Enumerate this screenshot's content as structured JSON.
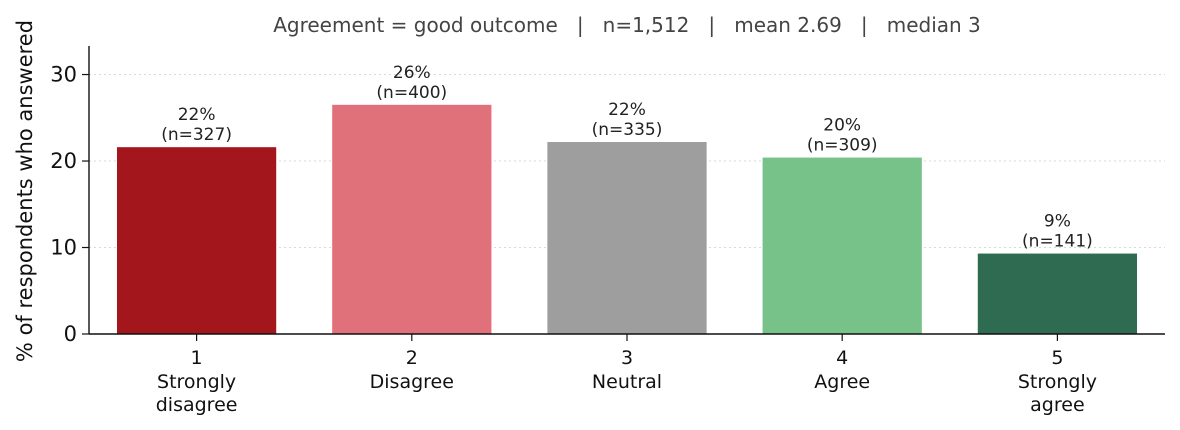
{
  "chart_data": {
    "type": "bar",
    "title": "Agreement = good outcome   |   n=1,512   |   mean 2.69   |   median 3",
    "ylabel": "% of respondents who answered",
    "xlabel": "",
    "ylim": [
      0,
      33.3
    ],
    "yticks": [
      0,
      10,
      20,
      30
    ],
    "grid": true,
    "categories": [
      {
        "code": "1",
        "label": [
          "Strongly",
          "disagree"
        ]
      },
      {
        "code": "2",
        "label": [
          "Disagree"
        ]
      },
      {
        "code": "3",
        "label": [
          "Neutral"
        ]
      },
      {
        "code": "4",
        "label": [
          "Agree"
        ]
      },
      {
        "code": "5",
        "label": [
          "Strongly",
          "agree"
        ]
      }
    ],
    "values": [
      21.6,
      26.5,
      22.2,
      20.4,
      9.3
    ],
    "data_labels": [
      [
        "22%",
        "(n=327)"
      ],
      [
        "26%",
        "(n=400)"
      ],
      [
        "22%",
        "(n=335)"
      ],
      [
        "20%",
        "(n=309)"
      ],
      [
        "9%",
        "(n=141)"
      ]
    ],
    "colors": [
      "#a3171c",
      "#e0717b",
      "#9e9e9e",
      "#77c289",
      "#2e6b50"
    ]
  }
}
